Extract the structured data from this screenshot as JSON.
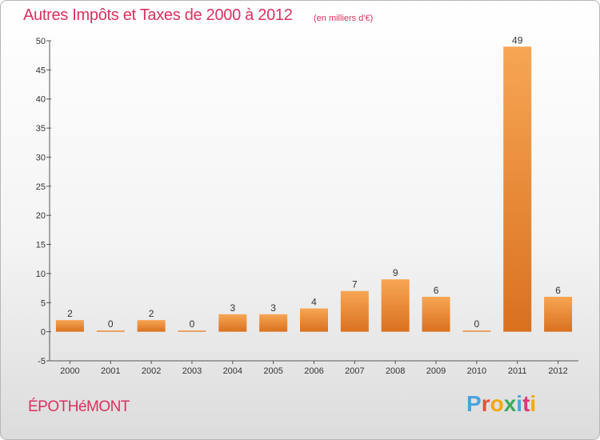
{
  "header": {
    "title": "Autres Impôts et Taxes de 2000 à 2012",
    "subtitle": "(en milliers d'€)"
  },
  "footer": {
    "commune": "ÉPOTHéMONT",
    "logo": [
      "P",
      "r",
      "o",
      "x",
      "i",
      "t",
      "i"
    ]
  },
  "colors": {
    "accent": "#d8325f",
    "bar_light": "#f7a654",
    "bar_dark": "#d9711f",
    "axis": "#555555"
  },
  "chart_data": {
    "type": "bar",
    "title": "Autres Impôts et Taxes de 2000 à 2012",
    "subtitle": "(en milliers d'€)",
    "categories": [
      "2000",
      "2001",
      "2002",
      "2003",
      "2004",
      "2005",
      "2006",
      "2007",
      "2008",
      "2009",
      "2010",
      "2011",
      "2012"
    ],
    "values": [
      2,
      0,
      2,
      0,
      3,
      3,
      4,
      7,
      9,
      6,
      0,
      49,
      6
    ],
    "value_labels": [
      "2",
      "0",
      "2",
      "0",
      "3",
      "3",
      "4",
      "7",
      "9",
      "6",
      "0",
      "49",
      "6"
    ],
    "y_ticks": [
      -5,
      0,
      5,
      10,
      15,
      20,
      25,
      30,
      35,
      40,
      45,
      50
    ],
    "y_tick_labels": [
      "-5",
      "0",
      "5",
      "10",
      "15",
      "20",
      "25",
      "30",
      "35",
      "40",
      "45",
      "50"
    ],
    "ylim": [
      -5,
      50
    ],
    "xlabel": "",
    "ylabel": "",
    "grid": false,
    "legend": "none"
  }
}
